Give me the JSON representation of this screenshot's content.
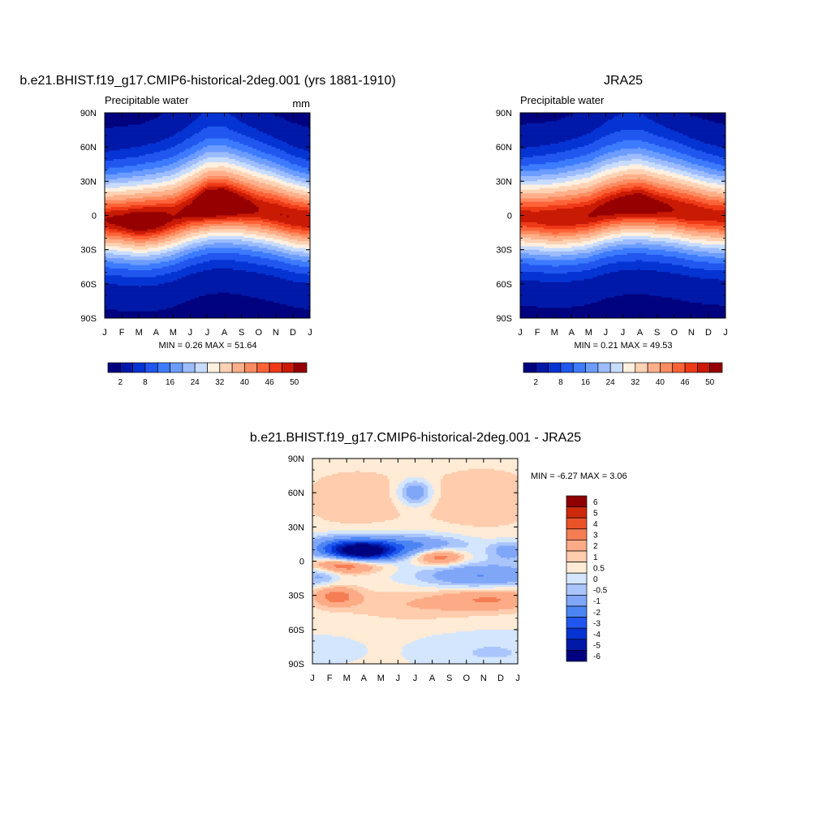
{
  "palettes": {
    "field": [
      "#00037f",
      "#0019a8",
      "#0534d3",
      "#2157ef",
      "#3d7bff",
      "#6c9cff",
      "#9cbcff",
      "#c8dcff",
      "#fff0e0",
      "#ffd2b4",
      "#ffb08a",
      "#ff8c61",
      "#fe6338",
      "#ee3a17",
      "#c91a05",
      "#960000"
    ],
    "diff": [
      "#00037f",
      "#0019a8",
      "#0534d3",
      "#2157ef",
      "#4b85f3",
      "#80a6f8",
      "#aac5fc",
      "#d4e6fe",
      "#ffebd6",
      "#ffccad",
      "#fcab86",
      "#f57d54",
      "#ea5228",
      "#cc2a0a",
      "#8f0000"
    ]
  },
  "panels": [
    {
      "title": "b.e21.BHIST.f19_g17.CMIP6-historical-2deg.001 (yrs 1881-1910)",
      "left_label": "Precipitable water",
      "right_label": "mm",
      "stats": "MIN =   0.26 MAX =  51.64"
    },
    {
      "title": "JRA25",
      "left_label": "Precipitable water",
      "right_label": "",
      "stats": "MIN =   0.21 MAX =  49.53"
    },
    {
      "title": "b.e21.BHIST.f19_g17.CMIP6-historical-2deg.001 - JRA25",
      "left_label": "",
      "right_label": "",
      "stats": "MIN =  -6.27 MAX =   3.06"
    }
  ],
  "chart_data": [
    {
      "type": "heatmap",
      "title": "b.e21.BHIST.f19_g17.CMIP6-historical-2deg.001 (yrs 1881-1910)",
      "left_label": "Precipitable water",
      "units": "mm",
      "x_ticks": [
        "J",
        "F",
        "M",
        "A",
        "M",
        "J",
        "J",
        "A",
        "S",
        "O",
        "N",
        "D",
        "J"
      ],
      "y_ticks": [
        "90N",
        "60N",
        "30N",
        "0",
        "30S",
        "60S",
        "90S"
      ],
      "y_range": [
        -90,
        90
      ],
      "min": 0.26,
      "max": 51.64,
      "colorbar_labels": [
        "2",
        "8",
        "16",
        "24",
        "32",
        "40",
        "46",
        "50"
      ],
      "field": {
        "itcz_lat": [
          -4,
          -5,
          -6,
          -5,
          -2,
          4,
          9,
          10,
          8,
          5,
          2,
          -2,
          -4
        ],
        "peak": [
          46,
          47,
          49,
          48,
          46,
          47,
          51,
          51,
          48,
          46,
          46,
          46,
          46
        ],
        "pole_north": [
          1,
          1,
          1,
          2,
          4,
          8,
          12,
          11,
          6,
          3,
          1,
          1,
          1
        ],
        "pole_south": [
          1,
          1,
          1,
          1,
          1,
          1,
          1,
          1,
          1,
          1,
          1,
          1,
          1
        ]
      }
    },
    {
      "type": "heatmap",
      "title": "JRA25",
      "left_label": "Precipitable water",
      "x_ticks": [
        "J",
        "F",
        "M",
        "A",
        "M",
        "J",
        "J",
        "A",
        "S",
        "O",
        "N",
        "D",
        "J"
      ],
      "y_ticks": [
        "90N",
        "60N",
        "30N",
        "0",
        "30S",
        "60S",
        "90S"
      ],
      "y_range": [
        -90,
        90
      ],
      "min": 0.21,
      "max": 49.53,
      "colorbar_labels": [
        "2",
        "8",
        "16",
        "24",
        "32",
        "40",
        "46",
        "50"
      ],
      "field": {
        "itcz_lat": [
          -1,
          -2,
          -3,
          -2,
          0,
          5,
          8,
          9,
          7,
          5,
          2,
          0,
          -1
        ],
        "peak": [
          45,
          45,
          46,
          46,
          46,
          47,
          48,
          49,
          47,
          46,
          46,
          45,
          45
        ],
        "pole_north": [
          1,
          1,
          1,
          2,
          4,
          8,
          11,
          10,
          6,
          3,
          1,
          1,
          1
        ],
        "pole_south": [
          1,
          1,
          1,
          1,
          1,
          1,
          1,
          1,
          1,
          1,
          1,
          1,
          1
        ]
      }
    },
    {
      "type": "heatmap",
      "title": "b.e21.BHIST.f19_g17.CMIP6-historical-2deg.001 - JRA25",
      "x_ticks": [
        "J",
        "F",
        "M",
        "A",
        "M",
        "J",
        "J",
        "A",
        "S",
        "O",
        "N",
        "D",
        "J"
      ],
      "y_ticks": [
        "90N",
        "60N",
        "30N",
        "0",
        "30S",
        "60S",
        "90S"
      ],
      "y_range": [
        -90,
        90
      ],
      "min": -6.27,
      "max": 3.06,
      "colorbar_labels": [
        "6",
        "5",
        "4",
        "3",
        "2",
        "1",
        "0.5",
        "0",
        "-0.5",
        "-1",
        "-2",
        "-3",
        "-4",
        "-5",
        "-6"
      ],
      "colorbar_levels": [
        -6,
        -5,
        -4,
        -3,
        -2,
        -1,
        -0.5,
        0,
        0.5,
        1,
        2,
        3,
        4,
        5,
        6
      ]
    }
  ]
}
